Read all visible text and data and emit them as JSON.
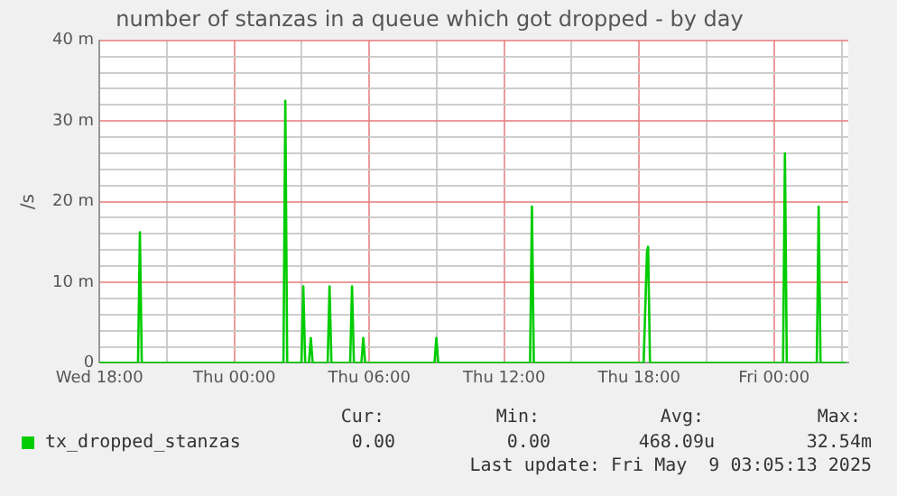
{
  "chart_data": {
    "type": "line",
    "title": "number of stanzas in a queue which got dropped - by day",
    "ylabel": "/s",
    "x": [
      "2025-05-07T18:00",
      "2025-05-07T19:43",
      "2025-05-07T19:48",
      "2025-05-07T19:53",
      "2025-05-08T02:11",
      "2025-05-08T02:16",
      "2025-05-08T02:21",
      "2025-05-08T02:59",
      "2025-05-08T03:04",
      "2025-05-08T03:09",
      "2025-05-08T03:19",
      "2025-05-08T03:24",
      "2025-05-08T03:29",
      "2025-05-08T04:09",
      "2025-05-08T04:14",
      "2025-05-08T04:19",
      "2025-05-08T05:09",
      "2025-05-08T05:14",
      "2025-05-08T05:19",
      "2025-05-08T05:39",
      "2025-05-08T05:44",
      "2025-05-08T05:49",
      "2025-05-08T08:54",
      "2025-05-08T08:59",
      "2025-05-08T09:04",
      "2025-05-08T13:09",
      "2025-05-08T13:14",
      "2025-05-08T13:19",
      "2025-05-08T18:12",
      "2025-05-08T18:21",
      "2025-05-08T18:24",
      "2025-05-08T18:29",
      "2025-05-09T00:24",
      "2025-05-09T00:29",
      "2025-05-09T00:34",
      "2025-05-09T01:54",
      "2025-05-09T01:59",
      "2025-05-09T02:04",
      "2025-05-09T03:12"
    ],
    "series": [
      {
        "name": "tx_dropped_stanzas",
        "color": "#00cc00",
        "values": [
          0,
          0,
          16.2,
          0,
          0,
          32.5,
          0,
          0,
          9.5,
          0,
          0,
          3.1,
          0,
          0,
          9.5,
          0,
          0,
          9.5,
          0,
          0,
          3.1,
          0,
          0,
          3.1,
          0,
          0,
          19.4,
          0,
          0,
          13.8,
          14.4,
          0,
          0,
          26.0,
          0,
          0,
          19.4,
          0,
          0
        ]
      }
    ],
    "xlim": [
      "2025-05-07T18:00",
      "2025-05-09T03:18"
    ],
    "xticks": [
      {
        "value": "2025-05-07T18:00",
        "label": "Wed 18:00"
      },
      {
        "value": "2025-05-07T21:00",
        "label": null
      },
      {
        "value": "2025-05-08T00:00",
        "label": "Thu 00:00"
      },
      {
        "value": "2025-05-08T03:00",
        "label": null
      },
      {
        "value": "2025-05-08T06:00",
        "label": "Thu 06:00"
      },
      {
        "value": "2025-05-08T09:00",
        "label": null
      },
      {
        "value": "2025-05-08T12:00",
        "label": "Thu 12:00"
      },
      {
        "value": "2025-05-08T15:00",
        "label": null
      },
      {
        "value": "2025-05-08T18:00",
        "label": "Thu 18:00"
      },
      {
        "value": "2025-05-08T21:00",
        "label": null
      },
      {
        "value": "2025-05-09T00:00",
        "label": "Fri 00:00"
      },
      {
        "value": "2025-05-09T03:00",
        "label": null
      }
    ],
    "ylim": [
      0,
      40
    ],
    "yticks": [
      0,
      {
        "value": 2,
        "label": null
      },
      {
        "value": 4,
        "label": null
      },
      {
        "value": 6,
        "label": null
      },
      {
        "value": 8,
        "label": null
      },
      {
        "value": 10,
        "label": "10 m"
      },
      {
        "value": 12,
        "label": null
      },
      {
        "value": 14,
        "label": null
      },
      {
        "value": 16,
        "label": null
      },
      {
        "value": 18,
        "label": null
      },
      {
        "value": 20,
        "label": "20 m"
      },
      {
        "value": 22,
        "label": null
      },
      {
        "value": 24,
        "label": null
      },
      {
        "value": 26,
        "label": null
      },
      {
        "value": 28,
        "label": null
      },
      {
        "value": 30,
        "label": "30 m"
      },
      {
        "value": 32,
        "label": null
      },
      {
        "value": 34,
        "label": null
      },
      {
        "value": 36,
        "label": null
      },
      {
        "value": 38,
        "label": null
      },
      {
        "value": 40,
        "label": "40 m"
      }
    ],
    "grid": true,
    "legend": "bottom",
    "marker": "none",
    "line_style": "solid",
    "annotations": [
      "Cur:",
      "Min:",
      "Avg:",
      "Max:",
      "0.00",
      "0.00",
      "468.09u",
      "32.54m",
      "Last update: Fri May  9 03:05:13 2025"
    ]
  }
}
